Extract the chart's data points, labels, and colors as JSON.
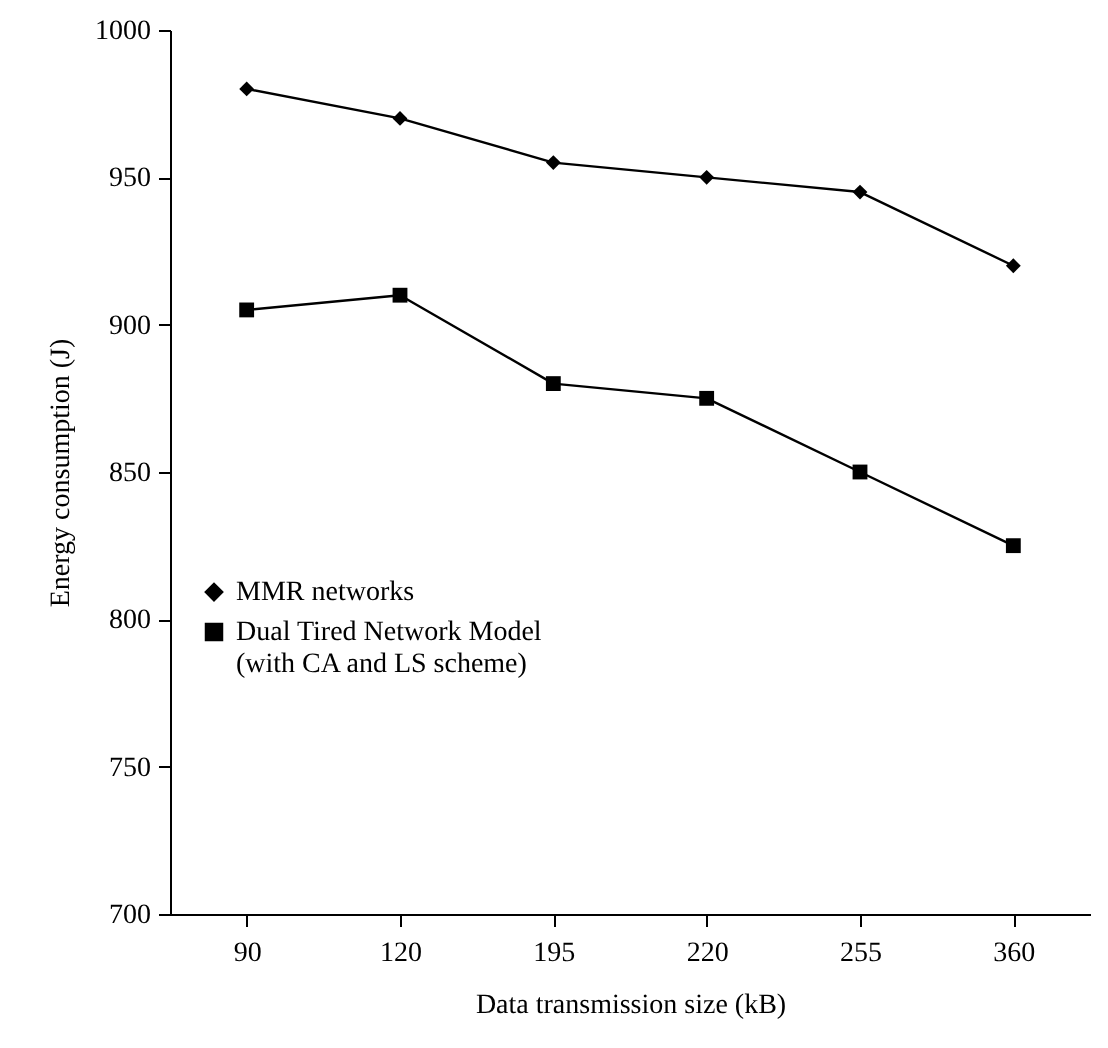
{
  "chart_data": {
    "type": "line",
    "xlabel": "Data transmission size (kB)",
    "ylabel": "Energy consumption (J)",
    "categories": [
      "90",
      "120",
      "195",
      "220",
      "255",
      "360"
    ],
    "series": [
      {
        "name": "MMR networks",
        "color": "#000000",
        "marker": "diamond",
        "values": [
          980,
          970,
          955,
          950,
          945,
          920
        ]
      },
      {
        "name": "Dual Tired Network Model (with CA and LS scheme)",
        "color": "#000000",
        "marker": "square",
        "values": [
          905,
          910,
          880,
          875,
          850,
          825
        ]
      }
    ],
    "ylim": [
      700,
      1000
    ],
    "yticks": [
      700,
      750,
      800,
      850,
      900,
      950,
      1000
    ],
    "grid": false,
    "legend": "left",
    "line_style": "solid"
  }
}
